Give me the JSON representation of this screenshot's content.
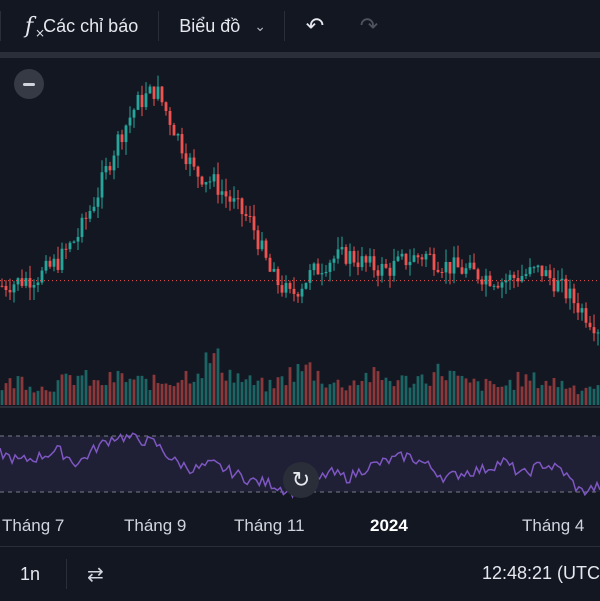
{
  "toolbar": {
    "indicators_icon": "function-fx-icon",
    "indicators_label": "Các chỉ báo",
    "chart_type_label": "Biểu đồ",
    "undo_icon": "undo-icon",
    "redo_icon": "redo-icon"
  },
  "time_axis": {
    "labels": [
      "Tháng 7",
      "Tháng 9",
      "Tháng 11",
      "2024",
      "Tháng 4"
    ]
  },
  "bottom_bar": {
    "range_label": "1n",
    "goto_icon": "calendar-goto-icon",
    "clock": "12:48:21 (UTC"
  },
  "colors": {
    "background": "#131722",
    "up": "#26a69a",
    "down": "#ef5350",
    "rsi_line": "#7e57c2",
    "rsi_band": "#7e57c2"
  },
  "chart_data": [
    {
      "type": "candlestick",
      "title": "",
      "x_labels": [
        "Tháng 7",
        "Tháng 9",
        "Tháng 11",
        "2024",
        "Tháng 4"
      ],
      "close_trend": [
        50,
        51,
        52,
        55,
        60,
        68,
        78,
        85,
        88,
        80,
        72,
        70,
        66,
        62,
        52,
        48,
        52,
        55,
        56,
        54,
        53,
        55,
        56,
        54,
        53,
        52,
        51,
        52,
        53,
        50,
        46,
        42
      ],
      "reference_line": 51,
      "grid": false
    },
    {
      "type": "bar",
      "title": "",
      "series": [
        {
          "name": "",
          "values": [
            10,
            14,
            9,
            12,
            16,
            11,
            15,
            13,
            12,
            14,
            18,
            26,
            16,
            12,
            10,
            17,
            20,
            12,
            11,
            16,
            14,
            13,
            15,
            19,
            12,
            11,
            10,
            14,
            13,
            12,
            9,
            11
          ]
        }
      ]
    },
    {
      "type": "line",
      "title": "",
      "band": [
        30,
        70
      ],
      "series": [
        {
          "name": "",
          "values": [
            58,
            52,
            55,
            60,
            50,
            62,
            70,
            68,
            65,
            52,
            46,
            50,
            44,
            38,
            36,
            30,
            34,
            44,
            40,
            48,
            52,
            56,
            50,
            40,
            44,
            46,
            52,
            42,
            50,
            46,
            30,
            34
          ]
        }
      ]
    }
  ]
}
